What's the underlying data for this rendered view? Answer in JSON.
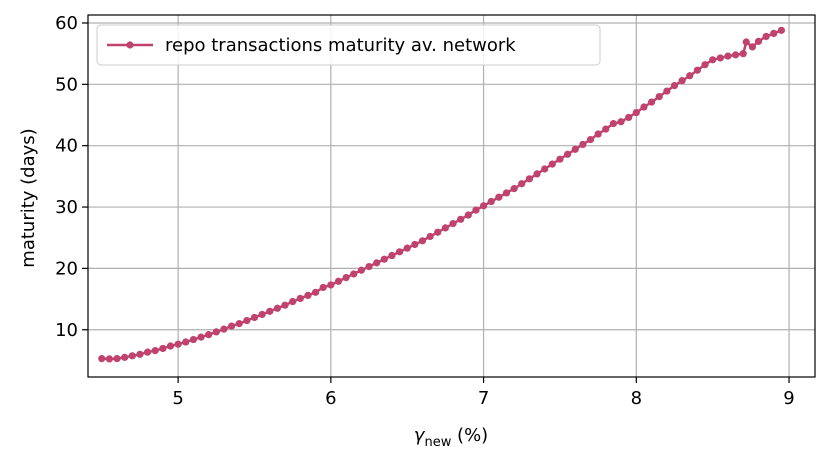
{
  "chart_data": {
    "type": "line",
    "title": "",
    "xlabel": {
      "symbol": "γ",
      "subscript": "new",
      "unit": " (%)"
    },
    "ylabel": "maturity (days)",
    "xlim": [
      4.41,
      9.17
    ],
    "ylim": [
      2.3,
      61.3
    ],
    "xticks": [
      5,
      6,
      7,
      8,
      9
    ],
    "yticks": [
      10,
      20,
      30,
      40,
      50,
      60
    ],
    "xtick_labels": [
      "5",
      "6",
      "7",
      "8",
      "9"
    ],
    "ytick_labels": [
      "10",
      "20",
      "30",
      "40",
      "50",
      "60"
    ],
    "grid": true,
    "legend_position": "top-left",
    "colors": {
      "series": "#c0426f",
      "grid": "#b0b0b0",
      "axes": "#000000"
    },
    "series": [
      {
        "name": "repo transactions maturity av. network",
        "marker": "circle",
        "points": [
          [
            4.5,
            5.3
          ],
          [
            4.55,
            5.25
          ],
          [
            4.6,
            5.3
          ],
          [
            4.65,
            5.5
          ],
          [
            4.7,
            5.75
          ],
          [
            4.75,
            6.0
          ],
          [
            4.8,
            6.35
          ],
          [
            4.85,
            6.6
          ],
          [
            4.9,
            6.95
          ],
          [
            4.95,
            7.35
          ],
          [
            5.0,
            7.65
          ],
          [
            5.05,
            8.0
          ],
          [
            5.1,
            8.4
          ],
          [
            5.15,
            8.8
          ],
          [
            5.2,
            9.2
          ],
          [
            5.25,
            9.65
          ],
          [
            5.3,
            10.1
          ],
          [
            5.35,
            10.6
          ],
          [
            5.4,
            11.0
          ],
          [
            5.45,
            11.5
          ],
          [
            5.5,
            12.0
          ],
          [
            5.55,
            12.5
          ],
          [
            5.6,
            13.0
          ],
          [
            5.65,
            13.5
          ],
          [
            5.7,
            14.0
          ],
          [
            5.75,
            14.6
          ],
          [
            5.8,
            15.1
          ],
          [
            5.85,
            15.6
          ],
          [
            5.9,
            16.1
          ],
          [
            5.95,
            16.9
          ],
          [
            6.0,
            17.3
          ],
          [
            6.05,
            17.9
          ],
          [
            6.1,
            18.5
          ],
          [
            6.15,
            19.1
          ],
          [
            6.2,
            19.7
          ],
          [
            6.25,
            20.3
          ],
          [
            6.3,
            20.9
          ],
          [
            6.35,
            21.5
          ],
          [
            6.4,
            22.1
          ],
          [
            6.45,
            22.7
          ],
          [
            6.5,
            23.3
          ],
          [
            6.55,
            23.9
          ],
          [
            6.6,
            24.5
          ],
          [
            6.65,
            25.2
          ],
          [
            6.7,
            25.9
          ],
          [
            6.75,
            26.6
          ],
          [
            6.8,
            27.3
          ],
          [
            6.85,
            28.0
          ],
          [
            6.9,
            28.7
          ],
          [
            6.95,
            29.5
          ],
          [
            7.0,
            30.2
          ],
          [
            7.05,
            30.9
          ],
          [
            7.1,
            31.6
          ],
          [
            7.15,
            32.3
          ],
          [
            7.2,
            33.0
          ],
          [
            7.25,
            33.8
          ],
          [
            7.3,
            34.6
          ],
          [
            7.35,
            35.4
          ],
          [
            7.4,
            36.2
          ],
          [
            7.45,
            37.0
          ],
          [
            7.5,
            37.8
          ],
          [
            7.55,
            38.6
          ],
          [
            7.6,
            39.4
          ],
          [
            7.65,
            40.2
          ],
          [
            7.7,
            41.0
          ],
          [
            7.75,
            41.9
          ],
          [
            7.8,
            42.7
          ],
          [
            7.85,
            43.6
          ],
          [
            7.9,
            43.9
          ],
          [
            7.95,
            44.6
          ],
          [
            8.0,
            45.4
          ],
          [
            8.05,
            46.3
          ],
          [
            8.1,
            47.1
          ],
          [
            8.15,
            48.0
          ],
          [
            8.2,
            48.9
          ],
          [
            8.25,
            49.8
          ],
          [
            8.3,
            50.6
          ],
          [
            8.35,
            51.4
          ],
          [
            8.4,
            52.3
          ],
          [
            8.45,
            53.2
          ],
          [
            8.5,
            54.0
          ],
          [
            8.55,
            54.3
          ],
          [
            8.6,
            54.6
          ],
          [
            8.65,
            54.8
          ],
          [
            8.7,
            55.0
          ],
          [
            8.72,
            56.9
          ],
          [
            8.76,
            56.1
          ],
          [
            8.8,
            57.0
          ],
          [
            8.85,
            57.8
          ],
          [
            8.9,
            58.3
          ],
          [
            8.95,
            58.8
          ]
        ]
      }
    ]
  }
}
